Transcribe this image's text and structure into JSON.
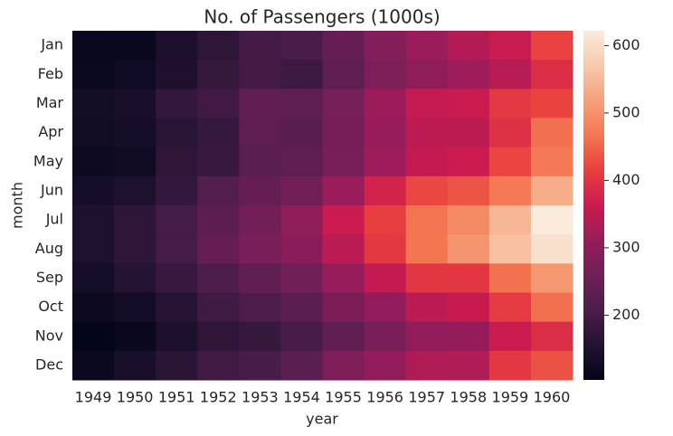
{
  "chart_data": {
    "type": "heatmap",
    "title": "No. of Passengers (1000s)",
    "x_label": "year",
    "y_label": "month",
    "x_categories": [
      1949,
      1950,
      1951,
      1952,
      1953,
      1954,
      1955,
      1956,
      1957,
      1958,
      1959,
      1960
    ],
    "y_categories": [
      "Jan",
      "Feb",
      "Mar",
      "Apr",
      "May",
      "Jun",
      "Jul",
      "Aug",
      "Sep",
      "Oct",
      "Nov",
      "Dec"
    ],
    "values": [
      [
        112,
        115,
        145,
        171,
        196,
        204,
        242,
        284,
        315,
        340,
        360,
        417
      ],
      [
        118,
        126,
        150,
        180,
        196,
        188,
        233,
        277,
        301,
        318,
        342,
        391
      ],
      [
        132,
        141,
        178,
        193,
        236,
        235,
        267,
        317,
        356,
        362,
        406,
        419
      ],
      [
        129,
        135,
        163,
        181,
        235,
        227,
        269,
        313,
        348,
        348,
        396,
        461
      ],
      [
        121,
        125,
        172,
        183,
        229,
        234,
        270,
        318,
        355,
        363,
        420,
        472
      ],
      [
        135,
        149,
        178,
        218,
        243,
        264,
        315,
        374,
        422,
        435,
        472,
        535
      ],
      [
        148,
        170,
        199,
        230,
        264,
        302,
        364,
        413,
        465,
        491,
        548,
        622
      ],
      [
        148,
        170,
        199,
        242,
        272,
        293,
        347,
        405,
        467,
        505,
        559,
        606
      ],
      [
        136,
        158,
        184,
        209,
        237,
        259,
        312,
        355,
        404,
        404,
        463,
        508
      ],
      [
        119,
        133,
        162,
        191,
        211,
        229,
        274,
        306,
        347,
        359,
        407,
        461
      ],
      [
        104,
        114,
        146,
        172,
        180,
        203,
        237,
        271,
        305,
        310,
        362,
        390
      ],
      [
        118,
        140,
        166,
        194,
        201,
        229,
        278,
        306,
        336,
        337,
        405,
        432
      ]
    ],
    "colorbar_lim": [
      104,
      622
    ],
    "colorbar_ticks": [
      200,
      300,
      400,
      500,
      600
    ],
    "colormap": [
      "#03051a",
      "#221331",
      "#4c1d4b",
      "#701f57",
      "#961c5b",
      "#cb1b4f",
      "#e83f3f",
      "#f37651",
      "#f6a07a",
      "#f7c9aa",
      "#faebdd"
    ]
  }
}
